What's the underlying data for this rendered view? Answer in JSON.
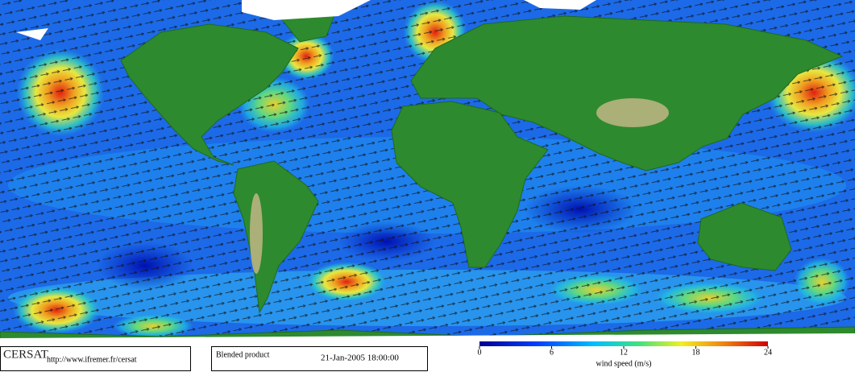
{
  "footer": {
    "logo": "CERSAT",
    "url": "http://www.ifremer.fr/cersat",
    "product": "Blended product",
    "date": "21-Jan-2005 18:00:00"
  },
  "colorbar": {
    "ticks": [
      0,
      6,
      12,
      18,
      24
    ],
    "label": "wind speed (m/s)"
  }
}
